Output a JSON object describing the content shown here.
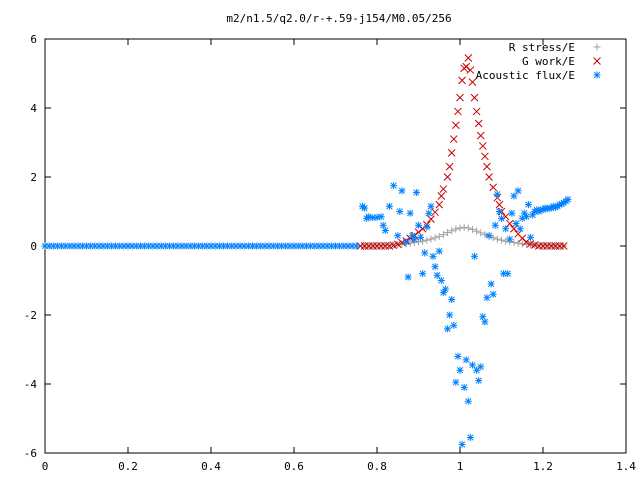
{
  "chart_data": {
    "type": "scatter",
    "title": "m2/n1.5/q2.0/r-+.59-j154/M0.05/256",
    "xlabel": "",
    "ylabel": "",
    "xlim": [
      0,
      1.4
    ],
    "ylim": [
      -6,
      6
    ],
    "x_ticks": [
      "0",
      "0.2",
      "0.4",
      "0.6",
      "0.8",
      "1",
      "1.2",
      "1.4"
    ],
    "y_ticks": [
      "-6",
      "-4",
      "-2",
      "0",
      "2",
      "4",
      "6"
    ],
    "x_tick_values": [
      0,
      0.2,
      0.4,
      0.6,
      0.8,
      1.0,
      1.2,
      1.4
    ],
    "y_tick_values": [
      -6,
      -4,
      -2,
      0,
      2,
      4,
      6
    ],
    "grid": false,
    "legend_position": "top-right",
    "series": [
      {
        "name": "R stress/E",
        "marker": "plus",
        "color": "#a0a0a0",
        "points": [
          [
            0.77,
            0.0
          ],
          [
            0.78,
            0.0
          ],
          [
            0.79,
            0.0
          ],
          [
            0.8,
            0.01
          ],
          [
            0.81,
            0.01
          ],
          [
            0.82,
            0.02
          ],
          [
            0.83,
            0.02
          ],
          [
            0.84,
            0.03
          ],
          [
            0.85,
            0.04
          ],
          [
            0.86,
            0.05
          ],
          [
            0.87,
            0.06
          ],
          [
            0.88,
            0.08
          ],
          [
            0.89,
            0.1
          ],
          [
            0.9,
            0.12
          ],
          [
            0.91,
            0.14
          ],
          [
            0.92,
            0.17
          ],
          [
            0.93,
            0.2
          ],
          [
            0.94,
            0.24
          ],
          [
            0.95,
            0.28
          ],
          [
            0.96,
            0.33
          ],
          [
            0.97,
            0.39
          ],
          [
            0.98,
            0.44
          ],
          [
            0.99,
            0.49
          ],
          [
            1.0,
            0.52
          ],
          [
            1.01,
            0.54
          ],
          [
            1.02,
            0.52
          ],
          [
            1.03,
            0.48
          ],
          [
            1.04,
            0.43
          ],
          [
            1.05,
            0.38
          ],
          [
            1.06,
            0.33
          ],
          [
            1.07,
            0.28
          ],
          [
            1.08,
            0.24
          ],
          [
            1.09,
            0.2
          ],
          [
            1.1,
            0.17
          ],
          [
            1.11,
            0.14
          ],
          [
            1.12,
            0.12
          ],
          [
            1.13,
            0.1
          ],
          [
            1.14,
            0.08
          ],
          [
            1.15,
            0.06
          ],
          [
            1.16,
            0.05
          ],
          [
            1.17,
            0.04
          ],
          [
            1.18,
            0.03
          ],
          [
            1.19,
            0.02
          ],
          [
            1.2,
            0.02
          ],
          [
            1.21,
            0.01
          ],
          [
            1.22,
            0.01
          ],
          [
            1.23,
            0.0
          ],
          [
            1.24,
            0.0
          ],
          [
            1.25,
            0.0
          ]
        ]
      },
      {
        "name": "G work/E",
        "marker": "cross",
        "color": "#cc0000",
        "points": [
          [
            0.76,
            0.0
          ],
          [
            0.77,
            0.0
          ],
          [
            0.78,
            0.0
          ],
          [
            0.79,
            0.0
          ],
          [
            0.8,
            0.0
          ],
          [
            0.81,
            0.0
          ],
          [
            0.82,
            0.0
          ],
          [
            0.83,
            0.0
          ],
          [
            0.84,
            0.02
          ],
          [
            0.85,
            0.05
          ],
          [
            0.86,
            0.1
          ],
          [
            0.87,
            0.15
          ],
          [
            0.88,
            0.22
          ],
          [
            0.89,
            0.3
          ],
          [
            0.9,
            0.4
          ],
          [
            0.91,
            0.5
          ],
          [
            0.92,
            0.62
          ],
          [
            0.93,
            0.78
          ],
          [
            0.94,
            0.98
          ],
          [
            0.95,
            1.2
          ],
          [
            0.955,
            1.45
          ],
          [
            0.96,
            1.65
          ],
          [
            0.97,
            2.0
          ],
          [
            0.975,
            2.3
          ],
          [
            0.98,
            2.7
          ],
          [
            0.985,
            3.1
          ],
          [
            0.99,
            3.5
          ],
          [
            0.995,
            3.9
          ],
          [
            1.0,
            4.3
          ],
          [
            1.005,
            4.8
          ],
          [
            1.01,
            5.15
          ],
          [
            1.015,
            5.2
          ],
          [
            1.02,
            5.45
          ],
          [
            1.025,
            5.1
          ],
          [
            1.03,
            4.75
          ],
          [
            1.035,
            4.3
          ],
          [
            1.04,
            3.9
          ],
          [
            1.045,
            3.55
          ],
          [
            1.05,
            3.2
          ],
          [
            1.055,
            2.9
          ],
          [
            1.06,
            2.6
          ],
          [
            1.065,
            2.3
          ],
          [
            1.07,
            2.0
          ],
          [
            1.08,
            1.7
          ],
          [
            1.09,
            1.4
          ],
          [
            1.095,
            1.2
          ],
          [
            1.1,
            1.0
          ],
          [
            1.11,
            0.85
          ],
          [
            1.12,
            0.65
          ],
          [
            1.13,
            0.5
          ],
          [
            1.14,
            0.35
          ],
          [
            1.15,
            0.22
          ],
          [
            1.16,
            0.12
          ],
          [
            1.17,
            0.06
          ],
          [
            1.18,
            0.03
          ],
          [
            1.19,
            0.0
          ],
          [
            1.2,
            0.0
          ],
          [
            1.21,
            0.0
          ],
          [
            1.22,
            0.0
          ],
          [
            1.23,
            0.0
          ],
          [
            1.24,
            0.0
          ],
          [
            1.25,
            0.0
          ]
        ]
      },
      {
        "name": "Acoustic flux/E",
        "marker": "star",
        "color": "#0080ff",
        "points": [
          [
            0.0,
            0.0
          ],
          [
            0.01,
            0.0
          ],
          [
            0.02,
            0.0
          ],
          [
            0.03,
            0.0
          ],
          [
            0.04,
            0.0
          ],
          [
            0.05,
            0.0
          ],
          [
            0.06,
            0.0
          ],
          [
            0.07,
            0.0
          ],
          [
            0.08,
            0.0
          ],
          [
            0.09,
            0.0
          ],
          [
            0.1,
            0.0
          ],
          [
            0.11,
            0.0
          ],
          [
            0.12,
            0.0
          ],
          [
            0.13,
            0.0
          ],
          [
            0.14,
            0.0
          ],
          [
            0.15,
            0.0
          ],
          [
            0.16,
            0.0
          ],
          [
            0.17,
            0.0
          ],
          [
            0.18,
            0.0
          ],
          [
            0.19,
            0.0
          ],
          [
            0.2,
            0.0
          ],
          [
            0.21,
            0.0
          ],
          [
            0.22,
            0.0
          ],
          [
            0.23,
            0.0
          ],
          [
            0.24,
            0.0
          ],
          [
            0.25,
            0.0
          ],
          [
            0.26,
            0.0
          ],
          [
            0.27,
            0.0
          ],
          [
            0.28,
            0.0
          ],
          [
            0.29,
            0.0
          ],
          [
            0.3,
            0.0
          ],
          [
            0.31,
            0.0
          ],
          [
            0.32,
            0.0
          ],
          [
            0.33,
            0.0
          ],
          [
            0.34,
            0.0
          ],
          [
            0.35,
            0.0
          ],
          [
            0.36,
            0.0
          ],
          [
            0.37,
            0.0
          ],
          [
            0.38,
            0.0
          ],
          [
            0.39,
            0.0
          ],
          [
            0.4,
            0.0
          ],
          [
            0.41,
            0.0
          ],
          [
            0.42,
            0.0
          ],
          [
            0.43,
            0.0
          ],
          [
            0.44,
            0.0
          ],
          [
            0.45,
            0.0
          ],
          [
            0.46,
            0.0
          ],
          [
            0.47,
            0.0
          ],
          [
            0.48,
            0.0
          ],
          [
            0.49,
            0.0
          ],
          [
            0.5,
            0.0
          ],
          [
            0.51,
            0.0
          ],
          [
            0.52,
            0.0
          ],
          [
            0.53,
            0.0
          ],
          [
            0.54,
            0.0
          ],
          [
            0.55,
            0.0
          ],
          [
            0.56,
            0.0
          ],
          [
            0.57,
            0.0
          ],
          [
            0.58,
            0.0
          ],
          [
            0.59,
            0.0
          ],
          [
            0.6,
            0.0
          ],
          [
            0.61,
            0.0
          ],
          [
            0.62,
            0.0
          ],
          [
            0.63,
            0.0
          ],
          [
            0.64,
            0.0
          ],
          [
            0.65,
            0.0
          ],
          [
            0.66,
            0.0
          ],
          [
            0.67,
            0.0
          ],
          [
            0.68,
            0.0
          ],
          [
            0.69,
            0.0
          ],
          [
            0.7,
            0.0
          ],
          [
            0.71,
            0.0
          ],
          [
            0.72,
            0.0
          ],
          [
            0.73,
            0.0
          ],
          [
            0.74,
            0.0
          ],
          [
            0.75,
            0.0
          ],
          [
            0.765,
            1.15
          ],
          [
            0.77,
            1.1
          ],
          [
            0.775,
            0.8
          ],
          [
            0.78,
            0.85
          ],
          [
            0.79,
            0.82
          ],
          [
            0.8,
            0.83
          ],
          [
            0.81,
            0.85
          ],
          [
            0.815,
            0.6
          ],
          [
            0.82,
            0.45
          ],
          [
            0.83,
            1.15
          ],
          [
            0.84,
            1.75
          ],
          [
            0.85,
            0.3
          ],
          [
            0.855,
            1.0
          ],
          [
            0.86,
            1.6
          ],
          [
            0.87,
            0.12
          ],
          [
            0.875,
            -0.9
          ],
          [
            0.88,
            0.95
          ],
          [
            0.885,
            0.3
          ],
          [
            0.89,
            0.2
          ],
          [
            0.895,
            1.55
          ],
          [
            0.9,
            0.6
          ],
          [
            0.905,
            0.25
          ],
          [
            0.91,
            -0.8
          ],
          [
            0.915,
            -0.2
          ],
          [
            0.92,
            0.55
          ],
          [
            0.925,
            0.95
          ],
          [
            0.93,
            1.15
          ],
          [
            0.935,
            -0.3
          ],
          [
            0.94,
            -0.6
          ],
          [
            0.945,
            -0.85
          ],
          [
            0.95,
            -0.15
          ],
          [
            0.955,
            -1.0
          ],
          [
            0.96,
            -1.35
          ],
          [
            0.965,
            -1.25
          ],
          [
            0.97,
            -2.4
          ],
          [
            0.975,
            -2.0
          ],
          [
            0.98,
            -1.55
          ],
          [
            0.985,
            -2.3
          ],
          [
            0.99,
            -3.95
          ],
          [
            0.995,
            -3.2
          ],
          [
            1.0,
            -3.6
          ],
          [
            1.005,
            -5.75
          ],
          [
            1.01,
            -4.1
          ],
          [
            1.015,
            -3.3
          ],
          [
            1.02,
            -4.5
          ],
          [
            1.025,
            -5.55
          ],
          [
            1.03,
            -3.45
          ],
          [
            1.035,
            -0.3
          ],
          [
            1.04,
            -3.6
          ],
          [
            1.045,
            -3.9
          ],
          [
            1.05,
            -3.5
          ],
          [
            1.055,
            -2.05
          ],
          [
            1.06,
            -2.2
          ],
          [
            1.065,
            -1.5
          ],
          [
            1.07,
            0.3
          ],
          [
            1.075,
            -1.1
          ],
          [
            1.08,
            -1.4
          ],
          [
            1.085,
            0.6
          ],
          [
            1.09,
            1.5
          ],
          [
            1.095,
            1.0
          ],
          [
            1.1,
            0.8
          ],
          [
            1.105,
            -0.8
          ],
          [
            1.11,
            0.5
          ],
          [
            1.115,
            -0.8
          ],
          [
            1.12,
            0.2
          ],
          [
            1.125,
            0.95
          ],
          [
            1.13,
            1.45
          ],
          [
            1.135,
            0.65
          ],
          [
            1.14,
            1.6
          ],
          [
            1.145,
            0.5
          ],
          [
            1.15,
            0.8
          ],
          [
            1.155,
            0.95
          ],
          [
            1.16,
            0.85
          ],
          [
            1.165,
            1.2
          ],
          [
            1.17,
            0.25
          ],
          [
            1.175,
            0.9
          ],
          [
            1.18,
            1.0
          ],
          [
            1.185,
            1.05
          ],
          [
            1.19,
            1.0
          ],
          [
            1.195,
            1.05
          ],
          [
            1.2,
            1.05
          ],
          [
            1.205,
            1.1
          ],
          [
            1.21,
            1.08
          ],
          [
            1.215,
            1.1
          ],
          [
            1.22,
            1.1
          ],
          [
            1.225,
            1.15
          ],
          [
            1.23,
            1.12
          ],
          [
            1.235,
            1.15
          ],
          [
            1.24,
            1.2
          ],
          [
            1.245,
            1.22
          ],
          [
            1.25,
            1.25
          ],
          [
            1.255,
            1.3
          ],
          [
            1.26,
            1.35
          ]
        ]
      }
    ]
  }
}
